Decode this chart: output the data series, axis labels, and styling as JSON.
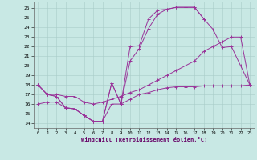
{
  "bg_color": "#c8e8e4",
  "grid_color": "#a8ccc8",
  "line_color": "#993399",
  "xlim": [
    -0.5,
    23.5
  ],
  "ylim": [
    13.5,
    26.7
  ],
  "xticks": [
    0,
    1,
    2,
    3,
    4,
    5,
    6,
    7,
    8,
    9,
    10,
    11,
    12,
    13,
    14,
    15,
    16,
    17,
    18,
    19,
    20,
    21,
    22,
    23
  ],
  "yticks": [
    14,
    15,
    16,
    17,
    18,
    19,
    20,
    21,
    22,
    23,
    24,
    25,
    26
  ],
  "xlabel": "Windchill (Refroidissement éolien,°C)",
  "line_A_x": [
    0,
    1,
    2,
    3,
    4,
    5,
    6,
    7,
    8,
    9,
    10,
    11,
    12,
    13,
    14,
    15,
    16,
    17,
    18,
    19,
    20,
    21,
    22,
    23
  ],
  "line_A_y": [
    18.0,
    17.0,
    16.8,
    15.6,
    15.5,
    14.8,
    14.2,
    14.2,
    18.2,
    16.0,
    22.0,
    22.1,
    24.9,
    25.8,
    25.9,
    26.1,
    26.1,
    26.1,
    24.9,
    23.8,
    21.9,
    22.0,
    20.0,
    18.0
  ],
  "line_B_x": [
    0,
    1,
    2,
    3,
    4,
    5,
    6,
    7,
    8,
    9,
    10,
    11,
    12,
    13,
    14,
    15,
    16,
    17,
    18
  ],
  "line_B_y": [
    18.0,
    17.0,
    16.8,
    15.6,
    15.5,
    14.8,
    14.2,
    14.2,
    18.2,
    16.0,
    20.5,
    21.8,
    23.9,
    25.4,
    25.9,
    26.1,
    26.1,
    26.1,
    24.9
  ],
  "line_C_x": [
    0,
    1,
    2,
    3,
    4,
    5,
    6,
    7,
    8,
    9,
    10,
    11,
    12,
    13,
    14,
    15,
    16,
    17,
    18,
    19,
    20,
    21,
    22,
    23
  ],
  "line_C_y": [
    18.0,
    17.0,
    17.0,
    16.8,
    16.8,
    16.2,
    16.0,
    16.2,
    16.5,
    16.8,
    17.2,
    17.5,
    18.0,
    18.5,
    19.0,
    19.5,
    20.0,
    20.5,
    21.5,
    22.0,
    22.5,
    23.0,
    23.0,
    18.0
  ],
  "line_D_x": [
    0,
    1,
    2,
    3,
    4,
    5,
    6,
    7,
    8,
    9,
    10,
    11,
    12,
    13,
    14,
    15,
    16,
    17,
    18,
    19,
    20,
    21,
    22,
    23
  ],
  "line_D_y": [
    16.0,
    16.2,
    16.2,
    15.6,
    15.5,
    14.8,
    14.2,
    14.2,
    16.0,
    16.0,
    16.5,
    17.0,
    17.2,
    17.5,
    17.7,
    17.8,
    17.8,
    17.8,
    17.9,
    17.9,
    17.9,
    17.9,
    17.9,
    18.0
  ]
}
